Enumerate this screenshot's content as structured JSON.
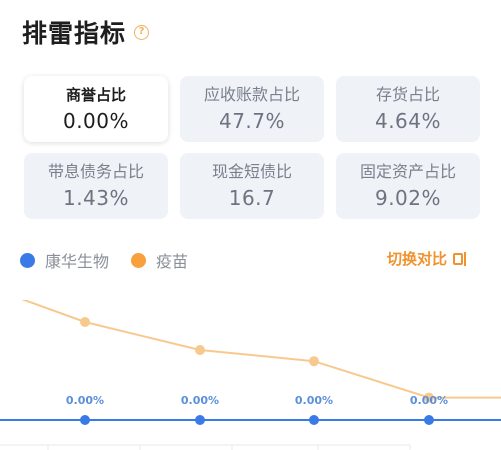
{
  "header": {
    "title": "排雷指标",
    "help_icon": "question-circle-icon"
  },
  "cards": [
    {
      "label": "商誉占比",
      "value": "0.00%",
      "active": true
    },
    {
      "label": "应收账款占比",
      "value": "47.7%",
      "active": false
    },
    {
      "label": "存货占比",
      "value": "4.64%",
      "active": false
    },
    {
      "label": "带息债务占比",
      "value": "1.43%",
      "active": false
    },
    {
      "label": "现金短债比",
      "value": "16.7",
      "active": false
    },
    {
      "label": "固定资产占比",
      "value": "9.02%",
      "active": false
    }
  ],
  "legend": [
    {
      "label": "康华生物",
      "color": "#3a7ae6"
    },
    {
      "label": "疫苗",
      "color": "#f8a03c"
    }
  ],
  "switch": {
    "label": "切换对比",
    "icon": "switch-compare-icon"
  },
  "chart_data": {
    "type": "line",
    "title": "",
    "xlabel": "",
    "ylabel": "",
    "series": [
      {
        "name": "康华生物",
        "color": "#3a7ae6",
        "values": [
          0,
          0,
          0,
          0
        ],
        "labels": [
          "0.00%",
          "0.00%",
          "0.00%",
          "0.00%"
        ]
      },
      {
        "name": "疫苗",
        "color": "#f8c98f",
        "values": [
          3.5,
          2.5,
          2.1,
          0.8
        ]
      }
    ]
  }
}
